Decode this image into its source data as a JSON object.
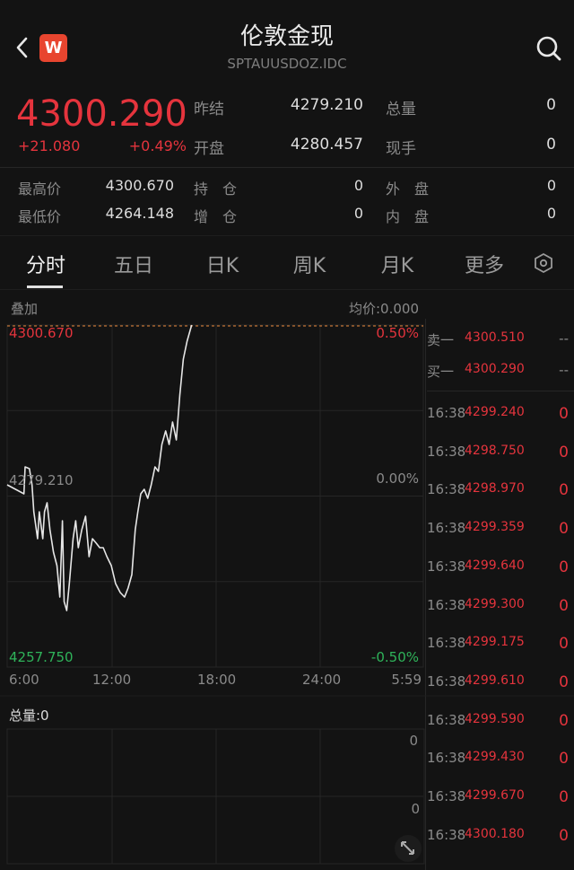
{
  "header": {
    "title": "伦敦金现",
    "symbol": "SPTAUUSDOZ.IDC",
    "logo_text": "W",
    "logo_color": "#e8452f",
    "icons": [
      "back-chevron-icon",
      "search-icon"
    ]
  },
  "quote": {
    "price": "4300.290",
    "change": "+21.080",
    "change_pct": "+0.49%",
    "fields": [
      {
        "label": "昨结",
        "value": "4279.210"
      },
      {
        "label": "总量",
        "value": "0"
      },
      {
        "label": "开盘",
        "value": "4280.457"
      },
      {
        "label": "现手",
        "value": "0"
      }
    ],
    "stats": [
      {
        "label": "最高价",
        "value": "4300.670"
      },
      {
        "label": "持　仓",
        "value": "0"
      },
      {
        "label": "外　盘",
        "value": "0"
      },
      {
        "label": "最低价",
        "value": "4264.148"
      },
      {
        "label": "增　仓",
        "value": "0"
      },
      {
        "label": "内　盘",
        "value": "0"
      }
    ]
  },
  "tabs": [
    {
      "label": "分时",
      "active": true
    },
    {
      "label": "五日"
    },
    {
      "label": "日K"
    },
    {
      "label": "周K"
    },
    {
      "label": "月K"
    },
    {
      "label": "更多"
    }
  ],
  "chart_header": {
    "overlay_label": "叠加",
    "avg_price": "均价:0.000"
  },
  "colors": {
    "up": "#e5343d",
    "down": "#2fb35a",
    "line": "#e6e6e6",
    "background": "#131313"
  },
  "chart_data": {
    "type": "line",
    "ylim": [
      4257.75,
      4300.67
    ],
    "y_labels_left": {
      "top": "4300.670",
      "mid": "4279.210",
      "bottom": "4257.750"
    },
    "y_labels_right": {
      "top": "0.50%",
      "mid": "0.00%",
      "bottom": "-0.50%"
    },
    "x_labels": [
      "6:00",
      "12:00",
      "18:00",
      "24:00",
      "5:59"
    ],
    "reference_price": 4279.21,
    "grid": true,
    "points": [
      [
        "6:00",
        4280.62
      ],
      [
        "6:58",
        4279.49
      ],
      [
        "7:02",
        4282.87
      ],
      [
        "7:17",
        4282.65
      ],
      [
        "7:26",
        4280.62
      ],
      [
        "7:32",
        4277.24
      ],
      [
        "7:45",
        4273.86
      ],
      [
        "7:51",
        4277.24
      ],
      [
        "8:03",
        4273.86
      ],
      [
        "8:09",
        4277.24
      ],
      [
        "8:18",
        4278.37
      ],
      [
        "8:28",
        4274.99
      ],
      [
        "8:40",
        4272.17
      ],
      [
        "8:52",
        4270.48
      ],
      [
        "9:02",
        4266.54
      ],
      [
        "9:11",
        4276.11
      ],
      [
        "9:17",
        4265.97
      ],
      [
        "9:26",
        4264.85
      ],
      [
        "9:35",
        4268.23
      ],
      [
        "9:48",
        4273.86
      ],
      [
        "9:57",
        4276.11
      ],
      [
        "10:06",
        4272.73
      ],
      [
        "10:18",
        4274.99
      ],
      [
        "10:31",
        4276.68
      ],
      [
        "10:43",
        4271.61
      ],
      [
        "10:55",
        4273.86
      ],
      [
        "11:08",
        4273.3
      ],
      [
        "11:20",
        4272.73
      ],
      [
        "11:32",
        4272.73
      ],
      [
        "11:45",
        4271.61
      ],
      [
        "12:00",
        4270.48
      ],
      [
        "12:15",
        4268.23
      ],
      [
        "12:31",
        4267.1
      ],
      [
        "12:46",
        4266.54
      ],
      [
        "12:58",
        4267.66
      ],
      [
        "13:11",
        4269.35
      ],
      [
        "13:23",
        4274.99
      ],
      [
        "13:32",
        4277.24
      ],
      [
        "13:42",
        4279.49
      ],
      [
        "13:54",
        4280.06
      ],
      [
        "14:06",
        4278.93
      ],
      [
        "14:18",
        4280.62
      ],
      [
        "14:31",
        4282.87
      ],
      [
        "14:43",
        4282.31
      ],
      [
        "14:55",
        4285.69
      ],
      [
        "15:08",
        4287.38
      ],
      [
        "15:20",
        4285.69
      ],
      [
        "15:32",
        4288.5
      ],
      [
        "15:45",
        4286.25
      ],
      [
        "15:57",
        4291.88
      ],
      [
        "16:09",
        4296.39
      ],
      [
        "16:22",
        4298.64
      ],
      [
        "16:38",
        4300.67
      ]
    ]
  },
  "order_book": [
    {
      "label": "卖一",
      "price": "4300.510",
      "volume": "--"
    },
    {
      "label": "买一",
      "price": "4300.290",
      "volume": "--"
    }
  ],
  "trades": [
    {
      "time": "16:38",
      "price": "4299.240",
      "volume": "0"
    },
    {
      "time": "16:38",
      "price": "4298.750",
      "volume": "0"
    },
    {
      "time": "16:38",
      "price": "4298.970",
      "volume": "0"
    },
    {
      "time": "16:38",
      "price": "4299.359",
      "volume": "0"
    },
    {
      "time": "16:38",
      "price": "4299.640",
      "volume": "0"
    },
    {
      "time": "16:38",
      "price": "4299.300",
      "volume": "0"
    },
    {
      "time": "16:38",
      "price": "4299.175",
      "volume": "0"
    },
    {
      "time": "16:38",
      "price": "4299.610",
      "volume": "0"
    },
    {
      "time": "16:38",
      "price": "4299.590",
      "volume": "0"
    },
    {
      "time": "16:38",
      "price": "4299.430",
      "volume": "0"
    },
    {
      "time": "16:38",
      "price": "4299.670",
      "volume": "0"
    },
    {
      "time": "16:38",
      "price": "4300.180",
      "volume": "0"
    }
  ],
  "volume": {
    "label": "总量:0",
    "top_label": "0",
    "mid_label": "0"
  }
}
